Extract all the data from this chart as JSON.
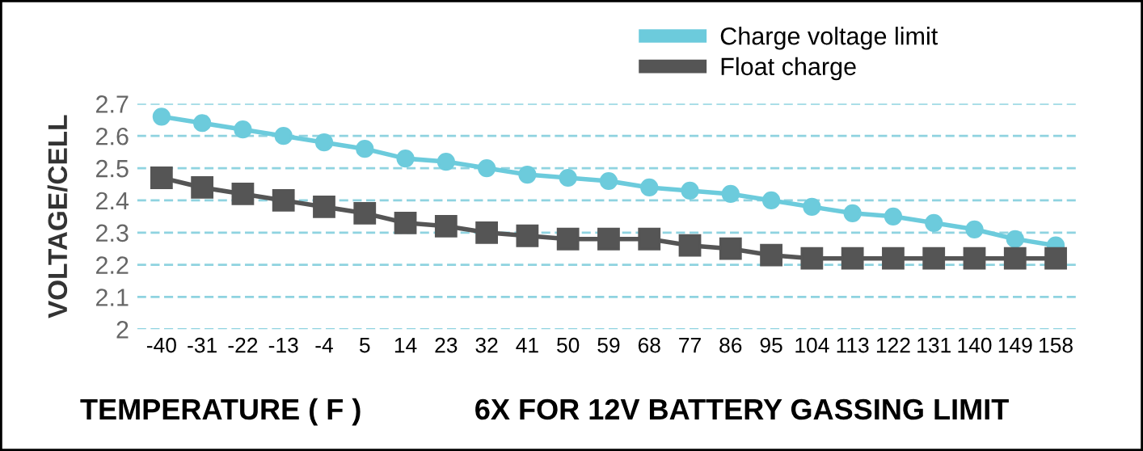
{
  "chart_data": {
    "type": "line",
    "xlabel": "TEMPERATURE ( F )",
    "ylabel": "VOLTAGE/CELL",
    "annotations": [
      "6X FOR 12V BATTERY GASSING LIMIT"
    ],
    "categories": [
      "-40",
      "-31",
      "-22",
      "-13",
      "-4",
      "5",
      "14",
      "23",
      "32",
      "41",
      "50",
      "59",
      "68",
      "77",
      "86",
      "95",
      "104",
      "113",
      "122",
      "131",
      "140",
      "149",
      "158"
    ],
    "series": [
      {
        "name": "Charge voltage limit",
        "color": "#6ccbdc",
        "marker": "circle",
        "values": [
          2.66,
          2.64,
          2.62,
          2.6,
          2.58,
          2.56,
          2.53,
          2.52,
          2.5,
          2.48,
          2.47,
          2.46,
          2.44,
          2.43,
          2.42,
          2.4,
          2.38,
          2.36,
          2.35,
          2.33,
          2.31,
          2.28,
          2.26
        ]
      },
      {
        "name": "Float charge",
        "color": "#555555",
        "marker": "square",
        "values": [
          2.47,
          2.44,
          2.42,
          2.4,
          2.38,
          2.36,
          2.33,
          2.32,
          2.3,
          2.29,
          2.28,
          2.28,
          2.28,
          2.26,
          2.25,
          2.23,
          2.22,
          2.22,
          2.22,
          2.22,
          2.22,
          2.22,
          2.22
        ]
      }
    ],
    "ylim": [
      2,
      2.7
    ],
    "yticks": [
      2,
      2.1,
      2.2,
      2.3,
      2.4,
      2.5,
      2.6,
      2.7
    ],
    "grid": "y",
    "legend": "top right"
  }
}
